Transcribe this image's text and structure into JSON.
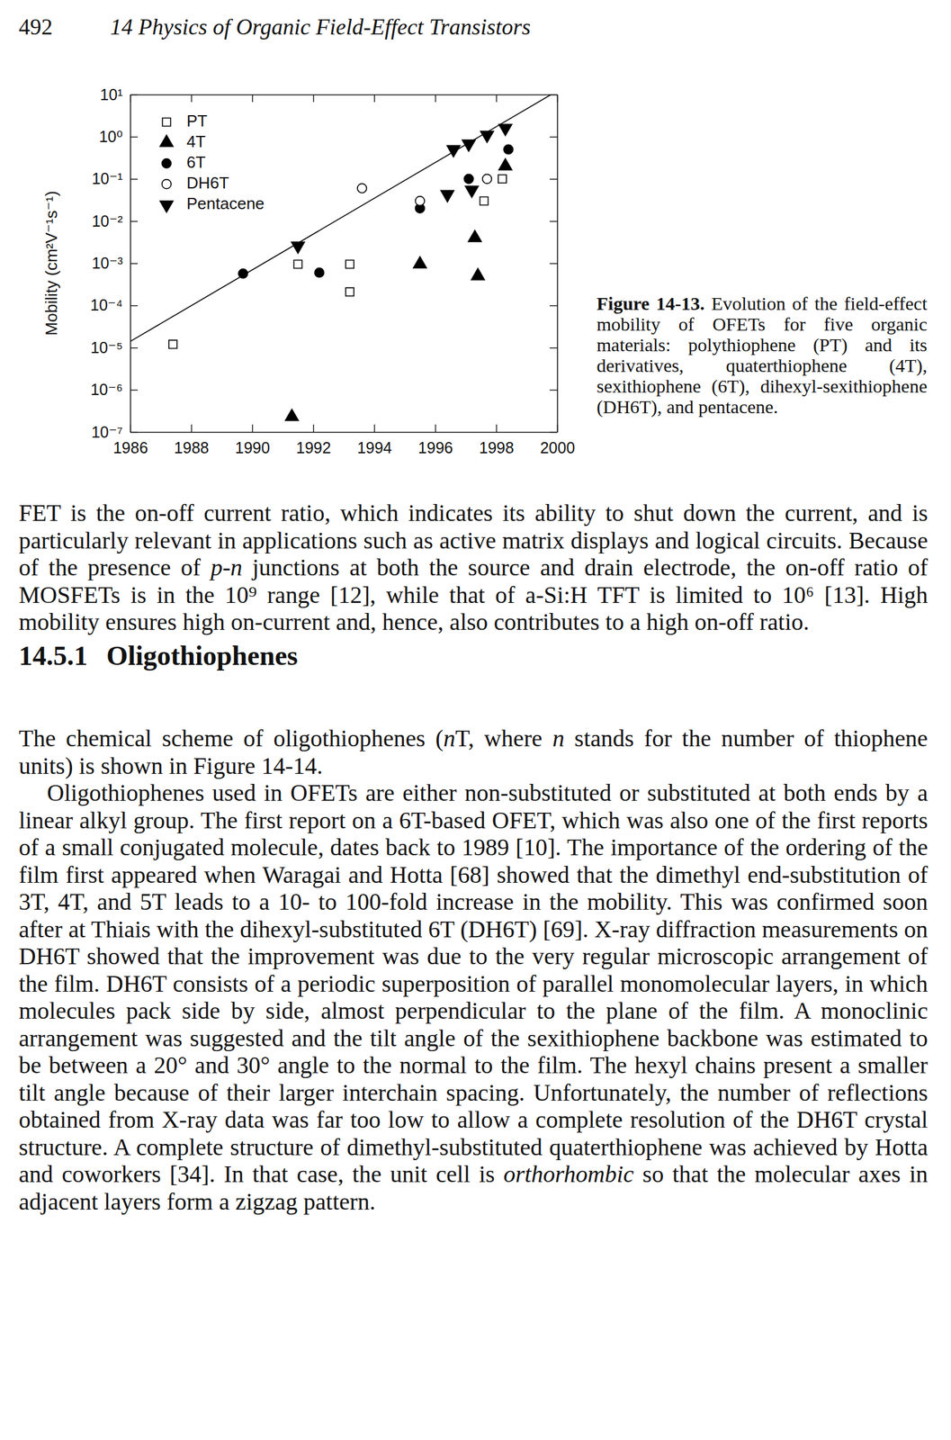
{
  "header": {
    "page": "492",
    "running_title": "14 Physics of Organic Field-Effect Transistors"
  },
  "chart_data": {
    "type": "scatter",
    "ylabel": "Mobility (cm²V⁻¹s⁻¹)",
    "log": "y",
    "legend": "upper left",
    "xlim": [
      1986,
      2000
    ],
    "xticks": [
      1986,
      1988,
      1990,
      1992,
      1994,
      1996,
      1998,
      2000
    ],
    "ylim": [
      1e-07,
      10
    ],
    "yticks": [
      {
        "value": 10,
        "label": "10¹"
      },
      {
        "value": 1,
        "label": "10⁰"
      },
      {
        "value": 0.1,
        "label": "10⁻¹"
      },
      {
        "value": 0.01,
        "label": "10⁻²"
      },
      {
        "value": 0.001,
        "label": "10⁻³"
      },
      {
        "value": 0.0001,
        "label": "10⁻⁴"
      },
      {
        "value": 1e-05,
        "label": "10⁻⁵"
      },
      {
        "value": 1e-06,
        "label": "10⁻⁶"
      },
      {
        "value": 1e-07,
        "label": "10⁻⁷"
      }
    ],
    "series": [
      {
        "name": "PT",
        "marker": "open-square",
        "color": "#000000",
        "x": [
          1987.4,
          1991.5,
          1993.2,
          1993.2,
          1997.6,
          1998.2
        ],
        "values": [
          1.2e-05,
          0.00095,
          0.00095,
          0.00021,
          0.03,
          0.1
        ]
      },
      {
        "name": "4T",
        "marker": "triangle",
        "color": "#000000",
        "x": [
          1991.3,
          1995.5,
          1997.3,
          1997.4,
          1998.3
        ],
        "values": [
          2.3e-07,
          0.00095,
          0.004,
          0.0005,
          0.2
        ]
      },
      {
        "name": "6T",
        "marker": "circle",
        "color": "#000000",
        "x": [
          1989.7,
          1992.2,
          1995.5,
          1997.1,
          1998.4
        ],
        "values": [
          0.00057,
          0.0006,
          0.02,
          0.1,
          0.5
        ]
      },
      {
        "name": "DH6T",
        "marker": "open-circle",
        "color": "#000000",
        "x": [
          1993.6,
          1995.5,
          1997.7
        ],
        "values": [
          0.06,
          0.03,
          0.1
        ]
      },
      {
        "name": "Pentacene",
        "marker": "triangle-down",
        "color": "#000000",
        "x": [
          1991.5,
          1996.4,
          1997.2,
          1996.6,
          1997.1,
          1997.7,
          1998.3
        ],
        "values": [
          0.0026,
          0.043,
          0.055,
          0.5,
          0.68,
          1.1,
          1.6
        ]
      },
      {
        "type": "line",
        "color": "#000000",
        "x": [
          1986,
          1999.8
        ],
        "values": [
          1.4e-05,
          10
        ]
      }
    ]
  },
  "caption": {
    "label": "Figure 14-13.",
    "text": "Evolution of the field-effect mobility of OFETs for five organic materials: polythiophene (PT) and its derivatives, quaterthiophene (4T), sexithiophene (6T), dihexyl-sexithiophene (DH6T), and pentacene."
  },
  "paragraphs": [
    [
      "FET is the on-off current ratio, which indicates its ability to shut down the current, and is particularly relevant in applications such as active matrix displays and logical circuits. Because of the presence of ",
      {
        "em": "p-n"
      },
      " junctions at both the source and drain electrode, the on-off ratio of MOSFETs is in the 10⁹ range [12], while that of a-Si:H TFT is limited to 10⁶ [13]. High mobility ensures high on-current and, hence, also contributes to a high on-off ratio."
    ]
  ],
  "section": {
    "number": "14.5.1",
    "title": "Oligothiophenes"
  },
  "section_paragraphs": [
    [
      "The chemical scheme of oligothiophenes (",
      {
        "em": "n"
      },
      "T, where ",
      {
        "em": "n"
      },
      " stands for the number of thiophene units) is shown in Figure 14-14."
    ],
    [
      "Oligothiophenes used in OFETs are either non-substituted or substituted at both ends by a linear alkyl group. The first report on a 6T-based OFET, which was also one of the first reports of a small conjugated molecule, dates back to 1989 [10]. The importance of the ordering of the film first appeared when Waragai and Hotta [68] showed that the dimethyl end-substitution of 3T, 4T, and 5T leads to a 10- to 100-fold increase in the mobility. This was confirmed soon after at Thiais with the dihexyl-substituted 6T (DH6T) [69]. X-ray diffraction measurements on DH6T showed that the improvement was due to the very regular microscopic arrangement of the film. DH6T consists of a periodic superposition of parallel monomolecular layers, in which molecules pack side by side, almost perpendicular to the plane of the film. A monoclinic arrangement was suggested and the tilt angle of the sexithiophene backbone was estimated to be between a 20° and 30° angle to the normal to the film. The hexyl chains present a smaller tilt angle because of their larger interchain spacing. Unfortunately, the number of reflections obtained from X-ray data was far too low to allow a complete resolution of the DH6T crystal structure. A complete structure of dimethyl-substituted quaterthiophene was achieved by Hotta and coworkers [34]. In that case, the unit cell is ",
      {
        "em": "orthorhombic"
      },
      " so that the molecular axes in adjacent layers form a zigzag pattern."
    ]
  ]
}
